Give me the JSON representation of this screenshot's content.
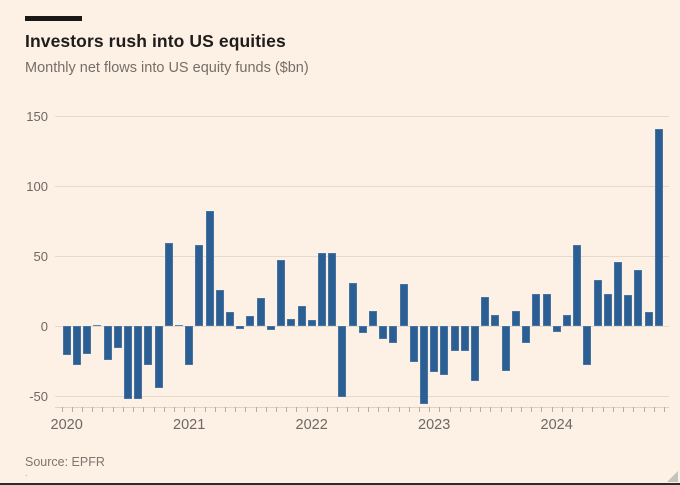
{
  "page": {
    "background": "#fdf0e5",
    "bottom_border_color": "#2e2b28"
  },
  "header": {
    "title": "Investors rush into US equities",
    "subtitle": "Monthly net flows into US equity funds ($bn)"
  },
  "source": {
    "label": "Source: EPFR",
    "footnote_mark": "."
  },
  "chart_data": {
    "type": "bar",
    "title": "Investors rush into US equities",
    "subtitle": "Monthly net flows into US equity funds ($bn)",
    "unit": "$bn",
    "bar_color": "#2b5f94",
    "grid": true,
    "legend": false,
    "ylim": [
      -60,
      155
    ],
    "y_ticks": [
      150,
      100,
      50,
      0,
      -50
    ],
    "x_year_labels": [
      "2020",
      "2021",
      "2022",
      "2023",
      "2024"
    ],
    "months": [
      "Jan 2020",
      "Feb 2020",
      "Mar 2020",
      "Apr 2020",
      "May 2020",
      "Jun 2020",
      "Jul 2020",
      "Aug 2020",
      "Sep 2020",
      "Oct 2020",
      "Nov 2020",
      "Dec 2020",
      "Jan 2021",
      "Feb 2021",
      "Mar 2021",
      "Apr 2021",
      "May 2021",
      "Jun 2021",
      "Jul 2021",
      "Aug 2021",
      "Sep 2021",
      "Oct 2021",
      "Nov 2021",
      "Dec 2021",
      "Jan 2022",
      "Feb 2022",
      "Mar 2022",
      "Apr 2022",
      "May 2022",
      "Jun 2022",
      "Jul 2022",
      "Aug 2022",
      "Sep 2022",
      "Oct 2022",
      "Nov 2022",
      "Dec 2022",
      "Jan 2023",
      "Feb 2023",
      "Mar 2023",
      "Apr 2023",
      "May 2023",
      "Jun 2023",
      "Jul 2023",
      "Aug 2023",
      "Sep 2023",
      "Oct 2023",
      "Nov 2023",
      "Dec 2023",
      "Jan 2024",
      "Feb 2024",
      "Mar 2024",
      "Apr 2024",
      "May 2024",
      "Jun 2024",
      "Jul 2024",
      "Aug 2024",
      "Sep 2024",
      "Oct 2024",
      "Nov 2024"
    ],
    "values": [
      -21,
      -28,
      -20,
      1,
      -24,
      -16,
      -52,
      -52,
      -28,
      -44,
      59,
      1,
      -28,
      58,
      82,
      26,
      10,
      -2,
      7,
      20,
      -3,
      47,
      5,
      14,
      4,
      52,
      52,
      -51,
      31,
      -5,
      11,
      -9,
      -12,
      30,
      -26,
      -56,
      -33,
      -35,
      -18,
      -18,
      -39,
      21,
      8,
      -32,
      11,
      -12,
      23,
      23,
      -4,
      8,
      58,
      -28,
      33,
      23,
      46,
      22,
      40,
      10,
      141
    ]
  }
}
